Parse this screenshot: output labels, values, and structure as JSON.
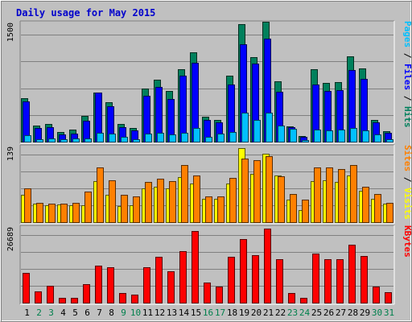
{
  "title": "Daily usage for May 2015",
  "colors": {
    "background": "#c0c0c0",
    "frame_light": "#ffffff",
    "frame_dark": "#808080",
    "gridline": "#808080",
    "title": "#0000cc",
    "weekday": "#000000",
    "weekend": "#00804c",
    "hits": "#00805c",
    "files": "#0000ff",
    "pages": "#00c0ff",
    "visits": "#ffff00",
    "sites": "#ff8000",
    "kbytes": "#ff0000"
  },
  "chart_data": {
    "type": "bar",
    "categories": [
      "1",
      "2",
      "3",
      "4",
      "5",
      "6",
      "7",
      "8",
      "9",
      "10",
      "11",
      "12",
      "13",
      "14",
      "15",
      "16",
      "17",
      "18",
      "19",
      "20",
      "21",
      "22",
      "23",
      "24",
      "25",
      "26",
      "27",
      "28",
      "29",
      "30",
      "31"
    ],
    "weekend_days": [
      "2",
      "3",
      "9",
      "10",
      "16",
      "17",
      "23",
      "24",
      "30",
      "31"
    ],
    "panels": [
      {
        "name": "usage",
        "ytick": "1500",
        "ymax": 1500,
        "legend": [
          {
            "text": "Pages",
            "color": "#00c0ff"
          },
          {
            "text": " / ",
            "color": "#000000"
          },
          {
            "text": "Files",
            "color": "#0000ff"
          },
          {
            "text": " / ",
            "color": "#000000"
          },
          {
            "text": "Hits",
            "color": "#00805c"
          }
        ],
        "series": [
          {
            "name": "Hits",
            "color": "#00805c",
            "values": [
              550,
              210,
              230,
              120,
              150,
              330,
              630,
              500,
              230,
              170,
              680,
              790,
              650,
              920,
              1140,
              320,
              280,
              840,
              1500,
              1080,
              1530,
              770,
              200,
              70,
              920,
              750,
              760,
              1090,
              930,
              280,
              130
            ]
          },
          {
            "name": "Files",
            "color": "#0000ff",
            "values": [
              510,
              170,
              180,
              90,
              100,
              270,
              630,
              450,
              190,
              140,
              590,
              700,
              540,
              840,
              1010,
              280,
              250,
              730,
              1240,
              1000,
              1320,
              640,
              180,
              60,
              730,
              650,
              660,
              910,
              800,
              250,
              110
            ]
          },
          {
            "name": "Pages",
            "color": "#00c0ff",
            "values": [
              80,
              30,
              40,
              30,
              40,
              40,
              110,
              100,
              60,
              30,
              100,
              110,
              90,
              110,
              170,
              60,
              100,
              120,
              370,
              280,
              370,
              210,
              160,
              20,
              150,
              140,
              150,
              170,
              140,
              90,
              30
            ]
          }
        ]
      },
      {
        "name": "visitors",
        "ytick": "139",
        "ymax": 139,
        "legend": [
          {
            "text": "Sites",
            "color": "#ff8000"
          },
          {
            "text": " / ",
            "color": "#000000"
          },
          {
            "text": "Visits",
            "color": "#ffff00"
          }
        ],
        "series": [
          {
            "name": "Visits",
            "color": "#ffff00",
            "values": [
              52,
              34,
              32,
              33,
              31,
              32,
              77,
              52,
              30,
              31,
              63,
              67,
              63,
              85,
              73,
              44,
              44,
              73,
              139,
              90,
              129,
              87,
              42,
              22,
              77,
              79,
              76,
              88,
              59,
              44,
              34
            ]
          },
          {
            "name": "Sites",
            "color": "#ff8000",
            "values": [
              64,
              36,
              35,
              35,
              36,
              58,
              103,
              79,
              51,
              49,
              75,
              82,
              77,
              107,
              87,
              48,
              48,
              83,
              120,
              116,
              124,
              86,
              53,
              43,
              103,
              103,
              99,
              108,
              67,
              53,
              36
            ]
          }
        ]
      },
      {
        "name": "kbytes",
        "ytick": "26689",
        "ymax": 26689,
        "legend": [
          {
            "text": "KBytes",
            "color": "#ff0000"
          }
        ],
        "series": [
          {
            "name": "KBytes",
            "color": "#ff0000",
            "values": [
              10680,
              4100,
              6130,
              1670,
              1860,
              6690,
              13360,
              12860,
              3570,
              2790,
              12740,
              16530,
              11290,
              18520,
              25960,
              7160,
              5920,
              16680,
              22860,
              16980,
              26689,
              15700,
              3570,
              1670,
              17680,
              15570,
              15560,
              20980,
              16860,
              5830,
              3680
            ]
          }
        ]
      }
    ]
  }
}
